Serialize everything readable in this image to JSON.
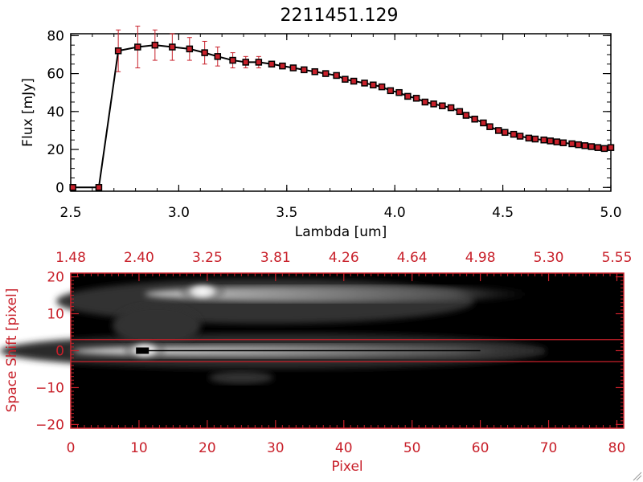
{
  "chart_data": [
    {
      "type": "line",
      "title": "2211451.129",
      "xlabel": "Lambda [um]",
      "ylabel": "Flux [mJy]",
      "xlim": [
        2.5,
        5.0
      ],
      "ylim": [
        -2,
        81
      ],
      "x_ticks": [
        2.5,
        3.0,
        3.5,
        4.0,
        4.5,
        5.0
      ],
      "x_tick_labels": [
        "2.5",
        "3.0",
        "3.5",
        "4.0",
        "4.5",
        "5.0"
      ],
      "y_ticks": [
        0,
        20,
        40,
        60,
        80
      ],
      "y_tick_labels": [
        "0",
        "20",
        "40",
        "60",
        "80"
      ],
      "grid": false,
      "series": [
        {
          "color": "#000000",
          "marker_color": "#c8202a",
          "errorbar_color": "#c8202a",
          "x": [
            2.51,
            2.63,
            2.72,
            2.81,
            2.89,
            2.97,
            3.05,
            3.12,
            3.18,
            3.25,
            3.31,
            3.37,
            3.43,
            3.48,
            3.53,
            3.58,
            3.63,
            3.68,
            3.73,
            3.77,
            3.81,
            3.86,
            3.9,
            3.94,
            3.98,
            4.02,
            4.06,
            4.1,
            4.14,
            4.18,
            4.22,
            4.26,
            4.3,
            4.33,
            4.37,
            4.41,
            4.44,
            4.48,
            4.51,
            4.55,
            4.58,
            4.62,
            4.65,
            4.69,
            4.72,
            4.75,
            4.78,
            4.82,
            4.85,
            4.88,
            4.91,
            4.94,
            4.97,
            5.0
          ],
          "y": [
            0,
            0,
            72,
            74,
            75,
            74,
            73,
            71,
            69,
            67,
            66,
            66,
            65,
            64,
            63,
            62,
            61,
            60,
            59,
            57,
            56,
            55,
            54,
            53,
            51,
            50,
            48,
            47,
            45,
            44,
            43,
            42,
            40,
            38,
            36,
            34,
            32,
            30,
            29,
            28,
            27,
            26,
            25.5,
            25,
            24.5,
            24,
            23.5,
            23,
            22.5,
            22,
            21.5,
            21,
            20.5,
            21
          ],
          "errors": [
            0,
            0,
            11,
            11,
            8,
            7,
            6,
            6,
            5,
            4,
            3,
            3,
            0,
            0,
            0,
            0,
            0,
            0,
            0,
            0,
            0,
            0,
            0,
            0,
            0,
            0,
            0,
            0,
            0,
            0,
            0,
            0,
            0,
            0,
            0,
            0,
            0,
            0,
            0,
            0,
            0,
            0,
            0,
            0,
            0,
            0,
            0,
            0,
            0,
            0,
            0,
            0,
            0,
            0
          ]
        }
      ]
    },
    {
      "type": "heatmap",
      "xlabel": "Pixel",
      "ylabel": "Space Shift [pixel]",
      "xlim": [
        0,
        81
      ],
      "ylim": [
        -21,
        21
      ],
      "x_ticks": [
        0,
        10,
        20,
        30,
        40,
        50,
        60,
        70,
        80
      ],
      "x_tick_labels": [
        "0",
        "10",
        "20",
        "30",
        "40",
        "50",
        "60",
        "70",
        "80"
      ],
      "y_ticks": [
        -20,
        -10,
        0,
        10,
        20
      ],
      "y_tick_labels": [
        "−20",
        "−10",
        "0",
        "10",
        "20"
      ],
      "top_ticks": [
        0,
        10,
        20,
        30,
        40,
        50,
        60,
        70,
        80
      ],
      "top_tick_labels": [
        "1.48",
        "2.40",
        "3.25",
        "3.81",
        "4.26",
        "4.64",
        "4.98",
        "5.30",
        "5.55"
      ],
      "extraction_window": [
        -3,
        3
      ],
      "trace_start": 10.5,
      "colormap": "grayscale",
      "accent_color": "#c8202a"
    }
  ]
}
